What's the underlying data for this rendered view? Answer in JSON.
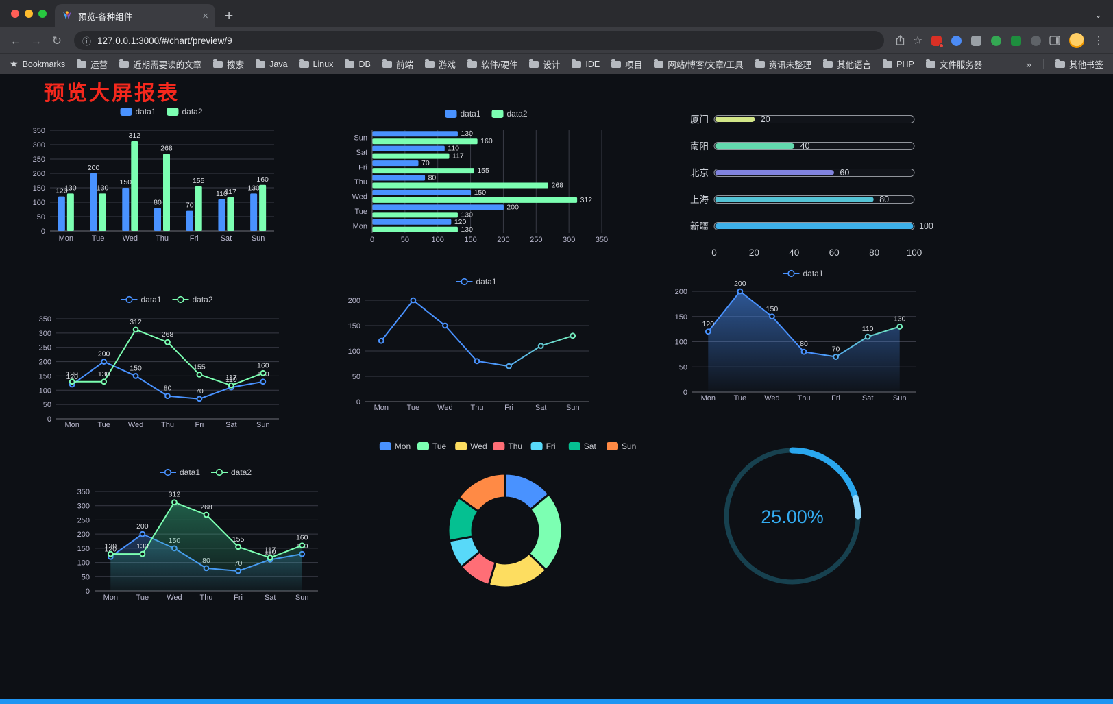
{
  "browser": {
    "tab_title": "预览-各种组件",
    "url": "127.0.0.1:3000/#/chart/preview/9",
    "glyphs": {
      "close_tab": "×",
      "new_tab": "+",
      "tab_search": "⌄",
      "back": "←",
      "forward": "→",
      "reload": "↻",
      "info": "ⓘ",
      "star": "☆",
      "bookmarks_star": "★",
      "overflow": "»",
      "menu": "⋮"
    },
    "bookmarks_label": "Bookmarks",
    "bookmarks": [
      "运营",
      "近期需要读的文章",
      "搜索",
      "Java",
      "Linux",
      "DB",
      "前端",
      "游戏",
      "软件/硬件",
      "设计",
      "IDE",
      "项目",
      "网站/博客/文章/工具",
      "资讯未整理",
      "其他语言",
      "PHP",
      "文件服务器"
    ],
    "other_bookmarks": "其他书签",
    "extensions": [
      "#d93025",
      "#4c8bf5",
      "#9aa0a6",
      "#34a853",
      "#1e8e3e",
      "#5f6368"
    ]
  },
  "page": {
    "title": "预览大屏报表",
    "title_color": "#f4281d",
    "background": "#0d1015",
    "accent_strip": "#2095f2"
  },
  "chart_data": [
    {
      "id": "vbar",
      "type": "bar",
      "title": "",
      "categories": [
        "Mon",
        "Tue",
        "Wed",
        "Thu",
        "Fri",
        "Sat",
        "Sun"
      ],
      "series": [
        {
          "name": "data1",
          "color": "#4992ff",
          "values": [
            120,
            200,
            150,
            80,
            70,
            110,
            130
          ]
        },
        {
          "name": "data2",
          "color": "#7cffb2",
          "values": [
            130,
            130,
            312,
            268,
            155,
            117,
            160
          ]
        }
      ],
      "ylim": [
        0,
        350
      ],
      "ytick_step": 50,
      "show_labels": true,
      "legend": [
        "data1",
        "data2"
      ],
      "legend_position": "top"
    },
    {
      "id": "hbar",
      "type": "bar",
      "orientation": "horizontal",
      "categories": [
        "Mon",
        "Tue",
        "Wed",
        "Thu",
        "Fri",
        "Sat",
        "Sun"
      ],
      "series": [
        {
          "name": "data1",
          "color": "#4992ff",
          "values": [
            120,
            200,
            150,
            80,
            70,
            110,
            130
          ]
        },
        {
          "name": "data2",
          "color": "#7cffb2",
          "values": [
            130,
            130,
            312,
            268,
            155,
            117,
            160
          ]
        }
      ],
      "xlim": [
        0,
        350
      ],
      "xtick_step": 50,
      "show_labels": true,
      "legend": [
        "data1",
        "data2"
      ],
      "legend_position": "top"
    },
    {
      "id": "progress",
      "type": "bar",
      "style": "progress",
      "items": [
        {
          "label": "厦门",
          "value": 20,
          "color": "#d2e688"
        },
        {
          "label": "南阳",
          "value": 40,
          "color": "#63d9ae"
        },
        {
          "label": "北京",
          "value": 60,
          "color": "#8184df"
        },
        {
          "label": "上海",
          "value": 80,
          "color": "#54c3d5"
        },
        {
          "label": "新疆",
          "value": 100,
          "color": "#3eb1ea"
        }
      ],
      "xlim": [
        0,
        100
      ],
      "xticks": [
        0,
        20,
        40,
        60,
        80,
        100
      ]
    },
    {
      "id": "line1",
      "type": "line",
      "categories": [
        "Mon",
        "Tue",
        "Wed",
        "Thu",
        "Fri",
        "Sat",
        "Sun"
      ],
      "series": [
        {
          "name": "data1",
          "color": "#4992ff",
          "values": [
            120,
            200,
            150,
            80,
            70,
            110,
            130
          ]
        },
        {
          "name": "data2",
          "color": "#7cffb2",
          "values": [
            130,
            130,
            312,
            268,
            155,
            117,
            160
          ]
        }
      ],
      "ylim": [
        0,
        350
      ],
      "ytick_step": 50,
      "show_labels": true,
      "legend": [
        "data1",
        "data2"
      ],
      "legend_position": "top"
    },
    {
      "id": "line2",
      "type": "line",
      "categories": [
        "Mon",
        "Tue",
        "Wed",
        "Thu",
        "Fri",
        "Sat",
        "Sun"
      ],
      "series": [
        {
          "name": "data1",
          "color": "#4992ff",
          "color_end": "#7cffb2",
          "values": [
            120,
            200,
            150,
            80,
            70,
            110,
            130
          ]
        }
      ],
      "ylim": [
        0,
        200
      ],
      "ytick_step": 50,
      "show_labels": false,
      "legend": [
        "data1"
      ],
      "legend_position": "top"
    },
    {
      "id": "line3",
      "type": "line",
      "categories": [
        "Mon",
        "Tue",
        "Wed",
        "Thu",
        "Fri",
        "Sat",
        "Sun"
      ],
      "series": [
        {
          "name": "data1",
          "color": "#4992ff",
          "color_end": "#7cffb2",
          "values": [
            120,
            200,
            150,
            80,
            70,
            110,
            130
          ],
          "area": true,
          "area_from": "rgba(73,146,255,0.55)",
          "area_to": "rgba(73,146,255,0.02)"
        }
      ],
      "ylim": [
        0,
        200
      ],
      "ytick_step": 50,
      "show_labels": true,
      "legend": [
        "data1"
      ],
      "legend_position": "top"
    },
    {
      "id": "line4",
      "type": "line",
      "categories": [
        "Mon",
        "Tue",
        "Wed",
        "Thu",
        "Fri",
        "Sat",
        "Sun"
      ],
      "series": [
        {
          "name": "data1",
          "color": "#4992ff",
          "values": [
            120,
            200,
            150,
            80,
            70,
            110,
            130
          ],
          "area": true,
          "area_from": "rgba(73,146,255,0.30)",
          "area_to": "rgba(73,146,255,0.02)"
        },
        {
          "name": "data2",
          "color": "#7cffb2",
          "values": [
            130,
            130,
            312,
            268,
            155,
            117,
            160
          ],
          "area": true,
          "area_from": "rgba(60,210,150,0.40)",
          "area_to": "rgba(60,210,150,0.03)"
        }
      ],
      "ylim": [
        0,
        350
      ],
      "ytick_step": 50,
      "show_labels": true,
      "legend": [
        "data1",
        "data2"
      ],
      "legend_position": "top"
    },
    {
      "id": "pie",
      "type": "pie",
      "donut": true,
      "items": [
        {
          "label": "Mon",
          "value": 120,
          "color": "#4992ff"
        },
        {
          "label": "Tue",
          "value": 200,
          "color": "#7cffb2"
        },
        {
          "label": "Wed",
          "value": 150,
          "color": "#fddd60"
        },
        {
          "label": "Thu",
          "value": 80,
          "color": "#ff6e76"
        },
        {
          "label": "Fri",
          "value": 70,
          "color": "#58d9f9"
        },
        {
          "label": "Sat",
          "value": 110,
          "color": "#05c091"
        },
        {
          "label": "Sun",
          "value": 130,
          "color": "#ff8a45"
        }
      ],
      "legend_position": "top"
    },
    {
      "id": "gauge",
      "type": "gauge",
      "value": 25,
      "label": "25.00%",
      "color": "#2aa7ee",
      "tip_color": "#8ed7fb",
      "track_color": "#17414f",
      "text_color": "#34adf2"
    }
  ]
}
